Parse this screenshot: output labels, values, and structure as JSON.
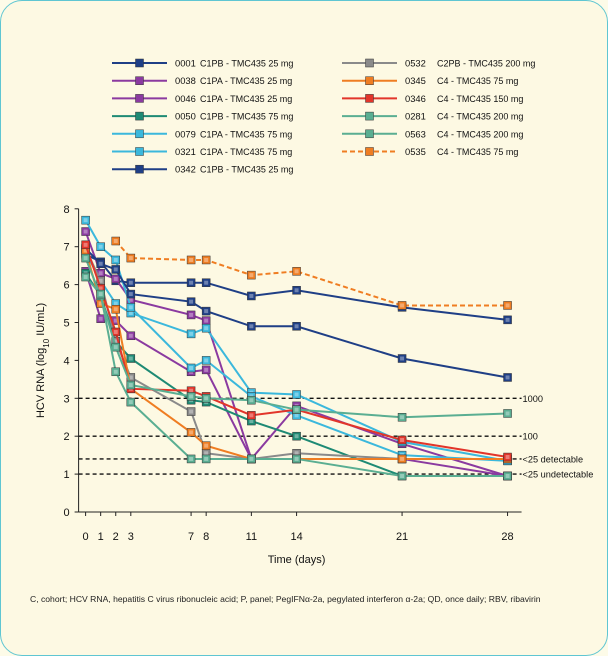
{
  "chart_data": {
    "type": "line",
    "ylabel": "HCV RNA (log10 IU/mL)",
    "xlabel": "Time (days)",
    "x_ticks": [
      0,
      1,
      2,
      3,
      7,
      8,
      11,
      14,
      21,
      28
    ],
    "y_ticks": [
      0,
      1,
      2,
      3,
      4,
      5,
      6,
      7,
      8
    ],
    "ylim": [
      0,
      8
    ],
    "grid": false,
    "legend_position": "top",
    "reference_lines": [
      {
        "y": 3,
        "label": "1000"
      },
      {
        "y": 2,
        "label": "100"
      },
      {
        "y": 1.4,
        "label": "<25 detectable"
      },
      {
        "y": 1,
        "label": "<25 undetectable"
      }
    ],
    "series": [
      {
        "id": "0001",
        "group": "C1PB - TMC435 25 mg",
        "color": "#1f3f86",
        "dashed": false,
        "x": [
          0,
          1,
          2,
          3,
          7,
          8,
          11,
          14,
          21,
          28
        ],
        "y": [
          6.8,
          6.6,
          6.1,
          6.05,
          6.05,
          6.05,
          5.7,
          5.85,
          5.4,
          5.07
        ]
      },
      {
        "id": "0038",
        "group": "C1PA - TMC435 25 mg",
        "color": "#8b3aa0",
        "dashed": false,
        "x": [
          0,
          1,
          2,
          3,
          7,
          8,
          11,
          14,
          21,
          28
        ],
        "y": [
          7.4,
          6.3,
          6.15,
          5.6,
          5.2,
          5.05,
          1.4,
          2.8,
          1.8,
          0.95
        ]
      },
      {
        "id": "0046",
        "group": "C1PA - TMC435 25 mg",
        "color": "#8b3aa0",
        "dashed": false,
        "x": [
          0,
          1,
          2,
          3,
          7,
          8,
          11,
          14,
          21,
          28
        ],
        "y": [
          6.35,
          5.1,
          5.05,
          4.65,
          3.7,
          3.75,
          1.4,
          1.4,
          1.4,
          0.95
        ]
      },
      {
        "id": "0050",
        "group": "C1PB - TMC435 75 mg",
        "color": "#1e8a74",
        "dashed": false,
        "x": [
          0,
          1,
          2,
          3,
          7,
          8,
          11,
          14,
          21,
          28
        ],
        "y": [
          6.3,
          5.7,
          4.5,
          4.05,
          2.95,
          2.9,
          2.4,
          2.0,
          0.95,
          0.95
        ]
      },
      {
        "id": "0079",
        "group": "C1PA - TMC435 75 mg",
        "color": "#3bb8dc",
        "dashed": false,
        "x": [
          0,
          1,
          2,
          3,
          7,
          8,
          11,
          14,
          21,
          28
        ],
        "y": [
          6.85,
          6.1,
          5.5,
          5.25,
          4.7,
          4.85,
          3.15,
          3.1,
          1.85,
          1.35
        ]
      },
      {
        "id": "0321",
        "group": "C1PA - TMC435 75 mg",
        "color": "#3bb8dc",
        "dashed": false,
        "x": [
          0,
          1,
          2,
          3,
          7,
          8,
          11,
          14,
          21,
          28
        ],
        "y": [
          7.7,
          7.0,
          6.65,
          5.4,
          3.8,
          4.0,
          3.05,
          2.55,
          1.5,
          1.35
        ]
      },
      {
        "id": "0342",
        "group": "C1PB - TMC435 25 mg",
        "color": "#1f3f86",
        "dashed": false,
        "x": [
          0,
          1,
          2,
          3,
          7,
          8,
          11,
          14,
          21,
          28
        ],
        "y": [
          6.95,
          6.55,
          6.4,
          5.75,
          5.55,
          5.3,
          4.9,
          4.9,
          4.05,
          3.55
        ]
      },
      {
        "id": "0532",
        "group": "C2PB - TMC435 200 mg",
        "color": "#8a8a8a",
        "dashed": false,
        "x": [
          0,
          1,
          2,
          3,
          7,
          8,
          11,
          14,
          21,
          28
        ],
        "y": [
          6.95,
          6.1,
          4.5,
          3.55,
          2.65,
          1.55,
          1.4,
          1.55,
          1.4,
          1.4
        ]
      },
      {
        "id": "0345",
        "group": "C4 - TMC435 75 mg",
        "color": "#ef7d22",
        "dashed": false,
        "x": [
          0,
          1,
          2,
          3,
          7,
          8,
          11,
          14,
          21,
          28
        ],
        "y": [
          6.9,
          5.5,
          5.35,
          3.25,
          2.1,
          1.75,
          1.4,
          1.4,
          1.4,
          1.4
        ]
      },
      {
        "id": "0346",
        "group": "C4 - TMC435 150 mg",
        "color": "#e2352a",
        "dashed": false,
        "x": [
          0,
          1,
          2,
          3,
          7,
          8,
          11,
          14,
          21,
          28
        ],
        "y": [
          7.05,
          5.9,
          4.75,
          3.25,
          3.2,
          3.05,
          2.55,
          2.7,
          1.9,
          1.45
        ]
      },
      {
        "id": "0281",
        "group": "C4 - TMC435 200 mg",
        "color": "#5aae92",
        "dashed": false,
        "x": [
          0,
          1,
          2,
          3,
          7,
          8,
          11,
          14,
          21,
          28
        ],
        "y": [
          6.7,
          5.7,
          4.35,
          3.35,
          3.05,
          3.0,
          2.95,
          2.7,
          2.5,
          2.6
        ]
      },
      {
        "id": "0563",
        "group": "C4 - TMC435 200 mg",
        "color": "#5aae92",
        "dashed": false,
        "x": [
          0,
          1,
          2,
          3,
          7,
          8,
          11,
          14,
          21,
          28
        ],
        "y": [
          6.2,
          5.75,
          3.7,
          2.9,
          1.4,
          1.4,
          1.4,
          1.4,
          0.95,
          0.95
        ]
      },
      {
        "id": "0535",
        "group": "C4 - TMC435 75 mg",
        "color": "#ef7d22",
        "dashed": true,
        "x": [
          2,
          3,
          7,
          8,
          11,
          14,
          21,
          28
        ],
        "y": [
          7.15,
          6.7,
          6.65,
          6.65,
          6.25,
          6.35,
          5.45,
          5.45
        ]
      }
    ]
  },
  "footnote": "C, cohort; HCV RNA, hepatitis C virus ribonucleic acid; P, panel; PegIFNα-2a, pegylated interferon α-2a; QD, once daily; RBV, ribavirin"
}
